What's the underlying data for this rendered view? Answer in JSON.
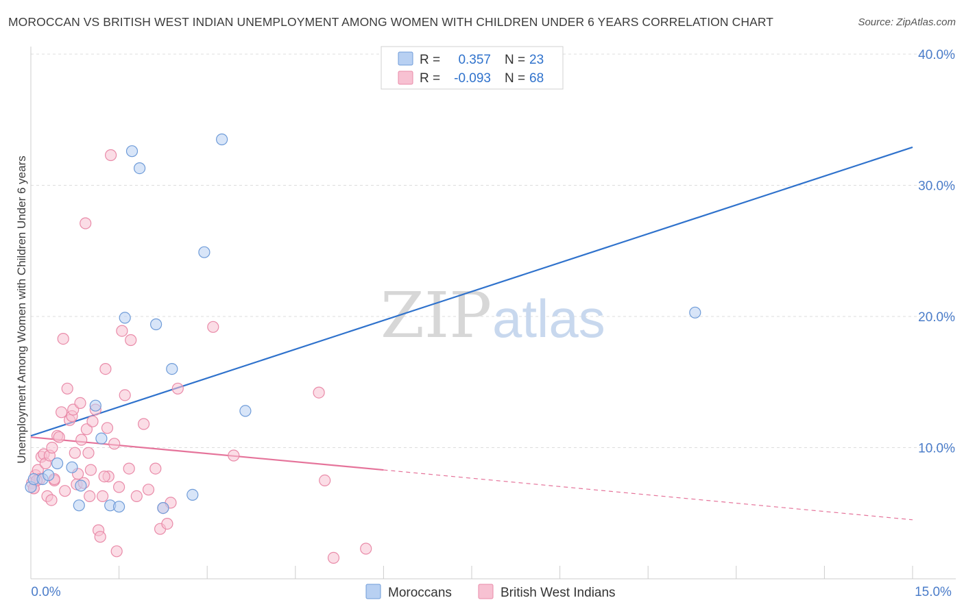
{
  "title": "MOROCCAN VS BRITISH WEST INDIAN UNEMPLOYMENT AMONG WOMEN WITH CHILDREN UNDER 6 YEARS CORRELATION CHART",
  "source": "Source: ZipAtlas.com",
  "watermark": {
    "zip": "ZIP",
    "atlas": "atlas"
  },
  "colors": {
    "moroccans_fill": "#b8d0f2",
    "moroccans_stroke": "#6e9bd8",
    "moroccans_line": "#2f72cc",
    "bwi_fill": "#f7c1d2",
    "bwi_stroke": "#e98aa8",
    "bwi_line": "#e5739a",
    "tick_text": "#4a7cc9",
    "grid": "#dcdcdc"
  },
  "stats_legend": [
    {
      "r_label": "R =",
      "r_value": "0.357",
      "n_label": "N =",
      "n_value": "23"
    },
    {
      "r_label": "R =",
      "r_value": "-0.093",
      "n_label": "N =",
      "n_value": "68"
    }
  ],
  "chart_data": {
    "type": "scatter",
    "title": "MOROCCAN VS BRITISH WEST INDIAN UNEMPLOYMENT AMONG WOMEN WITH CHILDREN UNDER 6 YEARS CORRELATION CHART",
    "xlabel": "",
    "ylabel": "Unemployment Among Women with Children Under 6 years",
    "xlim": [
      0,
      15
    ],
    "ylim": [
      0,
      40
    ],
    "x_tick_labels": [
      {
        "value": 0,
        "label": "0.0%"
      },
      {
        "value": 15,
        "label": "15.0%"
      }
    ],
    "y_tick_labels": [
      {
        "value": 10,
        "label": "10.0%"
      },
      {
        "value": 20,
        "label": "20.0%"
      },
      {
        "value": 30,
        "label": "30.0%"
      },
      {
        "value": 40,
        "label": "40.0%"
      }
    ],
    "legend": [
      "Moroccans",
      "British West Indians"
    ],
    "series": [
      {
        "name": "Moroccans",
        "points": [
          [
            0.0,
            7.0
          ],
          [
            0.05,
            7.6
          ],
          [
            0.2,
            7.6
          ],
          [
            0.3,
            7.9
          ],
          [
            0.45,
            8.8
          ],
          [
            0.7,
            8.5
          ],
          [
            0.85,
            7.1
          ],
          [
            0.82,
            5.6
          ],
          [
            1.1,
            13.2
          ],
          [
            1.2,
            10.7
          ],
          [
            1.35,
            5.6
          ],
          [
            1.5,
            5.5
          ],
          [
            1.6,
            19.9
          ],
          [
            1.72,
            32.6
          ],
          [
            1.85,
            31.3
          ],
          [
            2.13,
            19.4
          ],
          [
            2.25,
            5.4
          ],
          [
            2.4,
            16.0
          ],
          [
            2.75,
            6.4
          ],
          [
            2.95,
            24.9
          ],
          [
            3.25,
            33.5
          ],
          [
            3.65,
            12.8
          ],
          [
            11.3,
            20.3
          ]
        ],
        "trend": {
          "x": [
            0,
            15
          ],
          "y": [
            10.9,
            32.9
          ],
          "style": "solid"
        }
      },
      {
        "name": "British West Indians",
        "points": [
          [
            0.02,
            7.3
          ],
          [
            0.05,
            6.9
          ],
          [
            0.08,
            7.9
          ],
          [
            0.12,
            8.3
          ],
          [
            0.15,
            7.6
          ],
          [
            0.18,
            9.3
          ],
          [
            0.22,
            9.5
          ],
          [
            0.25,
            8.8
          ],
          [
            0.28,
            6.3
          ],
          [
            0.32,
            9.4
          ],
          [
            0.35,
            6.0
          ],
          [
            0.4,
            7.5
          ],
          [
            0.45,
            10.9
          ],
          [
            0.48,
            10.8
          ],
          [
            0.52,
            12.7
          ],
          [
            0.55,
            18.3
          ],
          [
            0.58,
            6.7
          ],
          [
            0.62,
            14.5
          ],
          [
            0.66,
            12.1
          ],
          [
            0.7,
            12.4
          ],
          [
            0.72,
            12.9
          ],
          [
            0.75,
            9.6
          ],
          [
            0.78,
            7.2
          ],
          [
            0.8,
            8.0
          ],
          [
            0.84,
            13.4
          ],
          [
            0.86,
            10.6
          ],
          [
            0.9,
            7.3
          ],
          [
            0.93,
            27.1
          ],
          [
            0.95,
            11.4
          ],
          [
            0.98,
            9.6
          ],
          [
            1.0,
            6.3
          ],
          [
            1.02,
            8.3
          ],
          [
            1.05,
            12.0
          ],
          [
            1.1,
            12.9
          ],
          [
            1.15,
            3.7
          ],
          [
            1.18,
            3.2
          ],
          [
            1.22,
            6.3
          ],
          [
            1.27,
            16.0
          ],
          [
            1.3,
            11.5
          ],
          [
            1.32,
            7.8
          ],
          [
            1.36,
            32.3
          ],
          [
            1.42,
            10.3
          ],
          [
            1.46,
            2.1
          ],
          [
            1.5,
            7.0
          ],
          [
            1.55,
            18.9
          ],
          [
            1.6,
            14.0
          ],
          [
            1.67,
            8.4
          ],
          [
            1.7,
            18.2
          ],
          [
            1.8,
            6.3
          ],
          [
            1.92,
            11.8
          ],
          [
            2.0,
            6.8
          ],
          [
            2.12,
            8.4
          ],
          [
            2.2,
            3.8
          ],
          [
            2.25,
            5.4
          ],
          [
            2.32,
            4.2
          ],
          [
            2.38,
            5.8
          ],
          [
            2.5,
            14.5
          ],
          [
            3.1,
            19.2
          ],
          [
            3.45,
            9.4
          ],
          [
            4.9,
            14.2
          ],
          [
            5.0,
            7.5
          ],
          [
            5.15,
            1.6
          ],
          [
            5.7,
            2.3
          ],
          [
            0.05,
            6.9
          ],
          [
            0.1,
            7.5
          ],
          [
            0.36,
            10.0
          ],
          [
            1.25,
            7.8
          ],
          [
            0.4,
            7.6
          ]
        ],
        "trend": {
          "x": [
            0,
            6
          ],
          "y": [
            10.8,
            8.3
          ],
          "style": "solid",
          "extended": {
            "x": [
              6,
              15
            ],
            "y": [
              8.3,
              4.5
            ],
            "style": "dashed"
          }
        }
      }
    ]
  }
}
